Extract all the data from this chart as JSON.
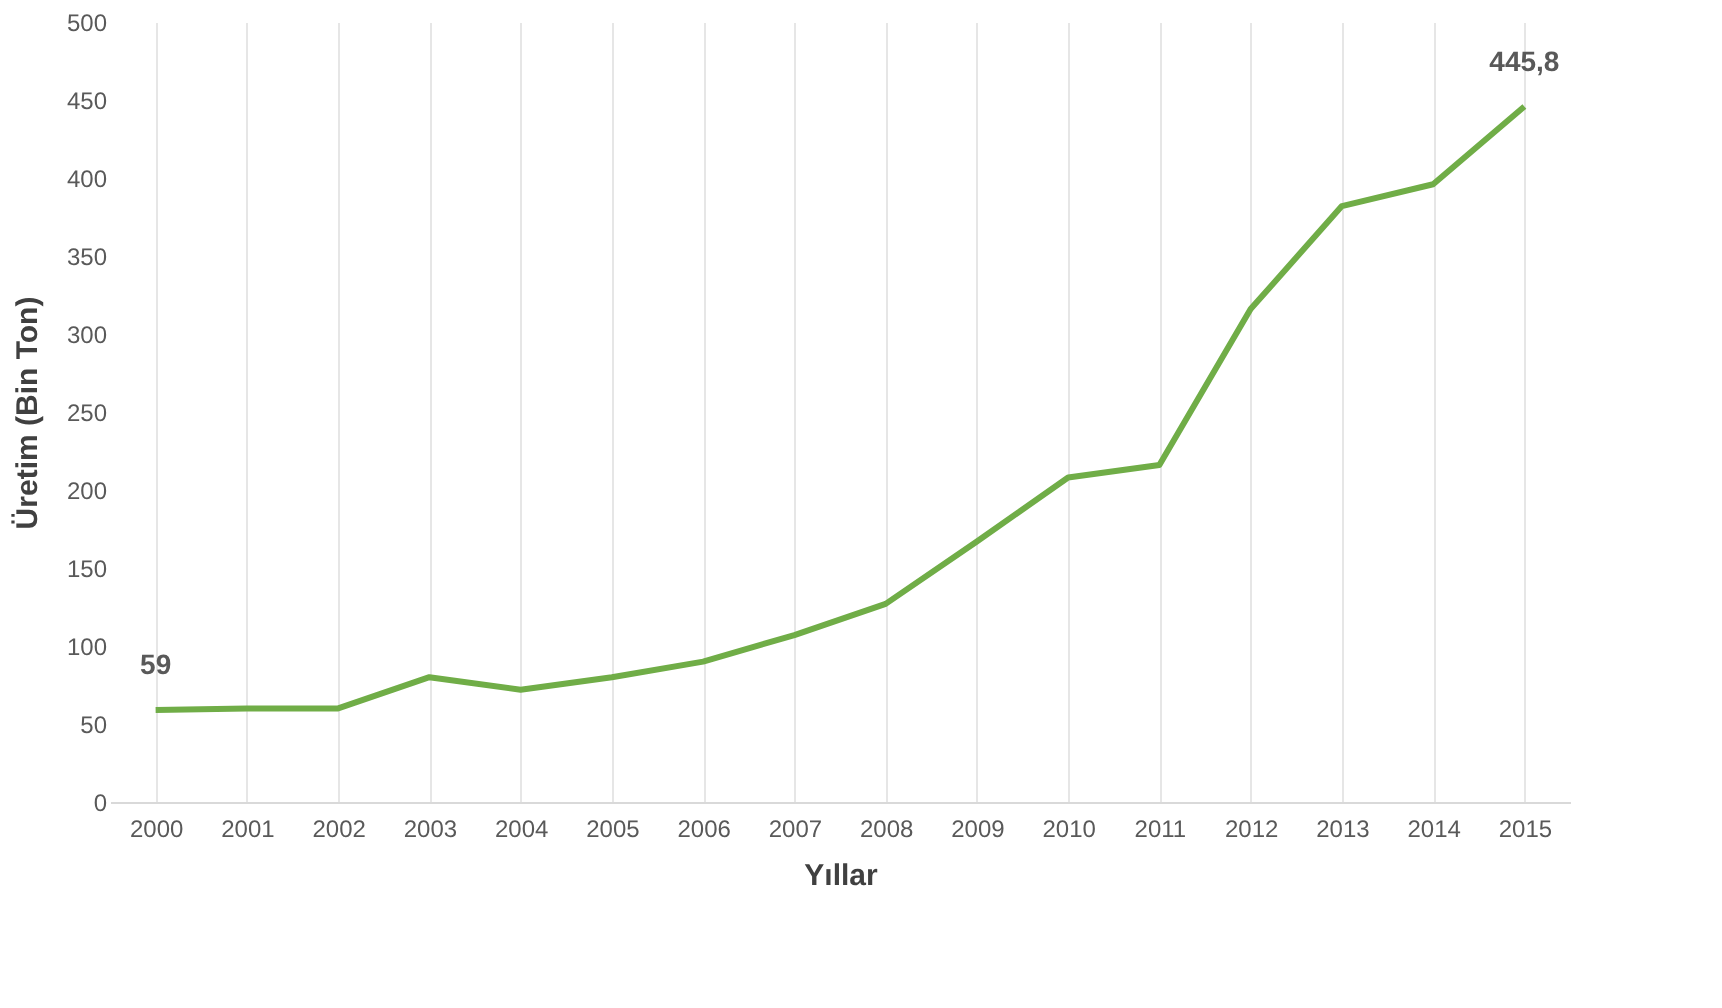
{
  "chart_data": {
    "type": "line",
    "xlabel": "Yıllar",
    "ylabel": "Üretim (Bin Ton)",
    "categories": [
      "2000",
      "2001",
      "2002",
      "2003",
      "2004",
      "2005",
      "2006",
      "2007",
      "2008",
      "2009",
      "2010",
      "2011",
      "2012",
      "2013",
      "2014",
      "2015"
    ],
    "series": [
      {
        "color": "#70ad47",
        "values": [
          59,
          60,
          60,
          80,
          72,
          80,
          90,
          107,
          127,
          167,
          208,
          216,
          316,
          382,
          396,
          445.8
        ],
        "value_labels": [
          "59",
          null,
          null,
          null,
          null,
          null,
          null,
          null,
          null,
          null,
          null,
          null,
          null,
          null,
          null,
          "445,8"
        ]
      }
    ],
    "ylim": [
      0,
      500
    ],
    "yticks": [
      0,
      50,
      100,
      150,
      200,
      250,
      300,
      350,
      400,
      450,
      500
    ],
    "grid": "x",
    "marker": "none",
    "line_style": "solid"
  }
}
